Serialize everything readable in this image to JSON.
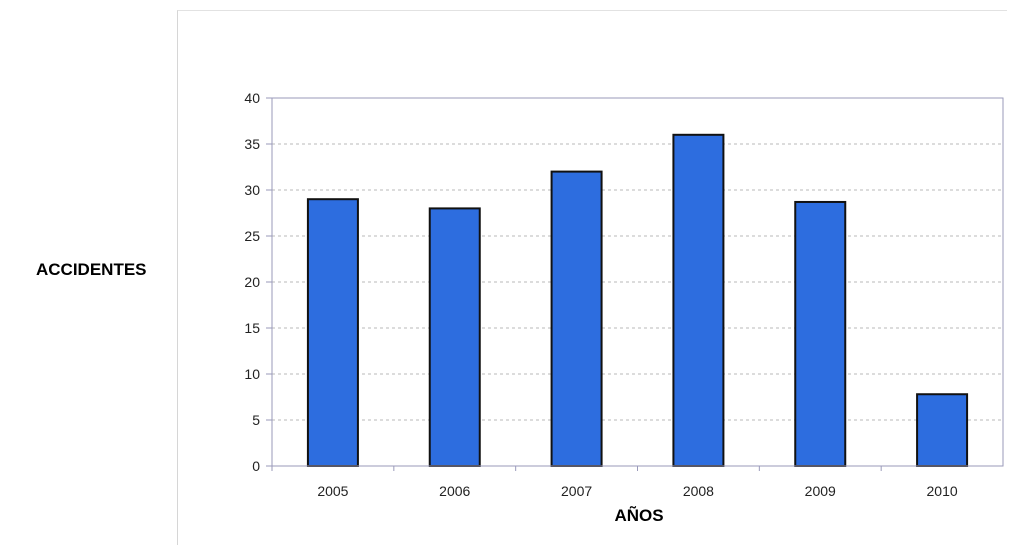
{
  "chart_data": {
    "type": "bar",
    "title": "",
    "xlabel": "AÑOS",
    "ylabel": "ACCIDENTES",
    "categories": [
      "2005",
      "2006",
      "2007",
      "2008",
      "2009",
      "2010"
    ],
    "values": [
      29,
      28,
      32,
      36,
      28.7,
      7.8
    ],
    "ylim": [
      0,
      40
    ],
    "yticks": [
      0,
      5,
      10,
      15,
      20,
      25,
      30,
      35,
      40
    ],
    "grid": true,
    "legend": "none",
    "bar_color": "#2d6ddf",
    "bar_edge_color": "#111111",
    "grid_color": "#b8b8b8",
    "axis_color": "#9a9aba"
  }
}
